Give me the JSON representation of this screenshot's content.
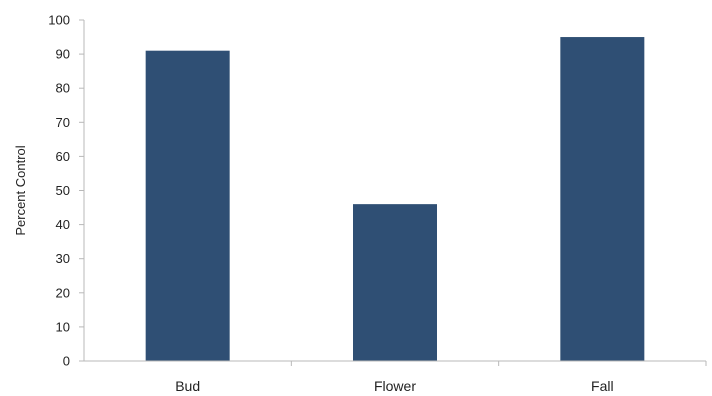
{
  "chart_data": {
    "type": "bar",
    "categories": [
      "Bud",
      "Flower",
      "Fall"
    ],
    "values": [
      91,
      46,
      95
    ],
    "ylabel": "Percent Control",
    "xlabel": "",
    "ylim": [
      0,
      100
    ],
    "yticks": [
      0,
      10,
      20,
      30,
      40,
      50,
      60,
      70,
      80,
      90,
      100
    ],
    "bar_color": "#2f4f74",
    "grid": false,
    "legend": "none"
  }
}
